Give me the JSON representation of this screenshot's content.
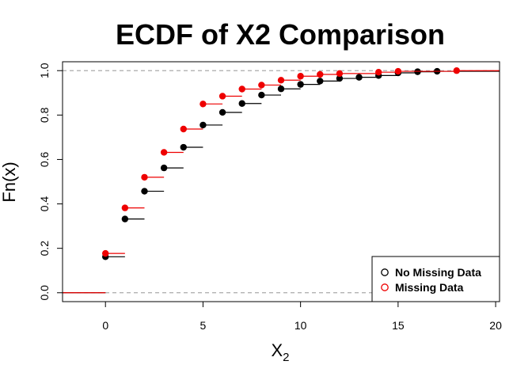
{
  "chart_data": {
    "type": "scatter",
    "title": "ECDF of X2 Comparison",
    "xlabel_main": "X",
    "xlabel_sub": "2",
    "ylabel": "Fn(x)",
    "xlim": [
      -2.2,
      20.2
    ],
    "ylim": [
      -0.04,
      1.04
    ],
    "x_ticks": [
      0,
      5,
      10,
      15,
      20
    ],
    "y_ticks": [
      0.0,
      0.2,
      0.4,
      0.6,
      0.8,
      1.0
    ],
    "reference_lines": [
      0,
      1
    ],
    "legend": {
      "position": "bottom-right"
    },
    "series": [
      {
        "name": "No Missing Data",
        "color": "#000000",
        "x": [
          0,
          1,
          2,
          3,
          4,
          5,
          6,
          7,
          8,
          9,
          10,
          11,
          12,
          13,
          14,
          15,
          16,
          17
        ],
        "y": [
          0.162,
          0.332,
          0.457,
          0.562,
          0.655,
          0.755,
          0.812,
          0.852,
          0.89,
          0.918,
          0.938,
          0.953,
          0.965,
          0.97,
          0.978,
          0.99,
          0.995,
          0.997
        ]
      },
      {
        "name": "Missing Data",
        "color": "#ee0000",
        "x": [
          0,
          1,
          2,
          3,
          4,
          5,
          6,
          7,
          8,
          9,
          10,
          11,
          12,
          14,
          15,
          18
        ],
        "y": [
          0.177,
          0.382,
          0.52,
          0.632,
          0.737,
          0.85,
          0.885,
          0.917,
          0.935,
          0.957,
          0.975,
          0.983,
          0.987,
          0.993,
          0.997,
          1.0
        ]
      }
    ]
  }
}
